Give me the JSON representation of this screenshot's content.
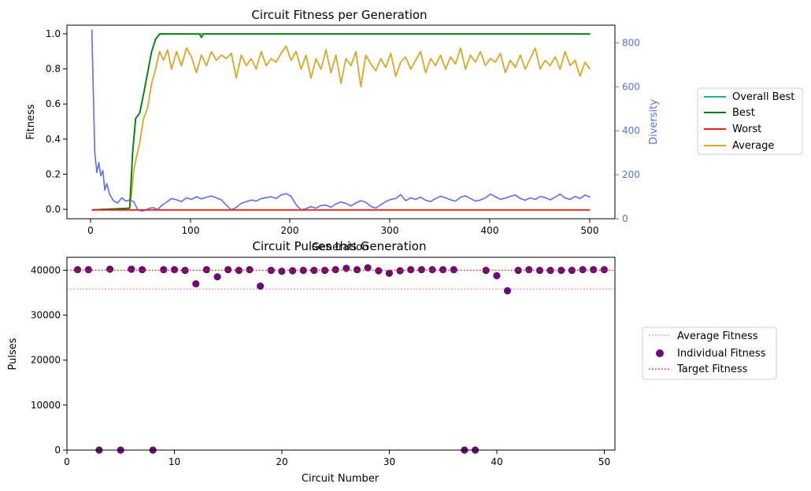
{
  "chart_data": [
    {
      "type": "line",
      "title": "Circuit Fitness per Generation",
      "xlabel": "Generation",
      "ylabel": "Fitness",
      "y2label": "Diversity",
      "xlim": [
        -25,
        525
      ],
      "ylim": [
        -0.05,
        1.05
      ],
      "y2lim": [
        0,
        880
      ],
      "xticks": [
        "0",
        "100",
        "200",
        "300",
        "400",
        "500"
      ],
      "yticks": [
        "0.0",
        "0.2",
        "0.4",
        "0.6",
        "0.8",
        "1.0"
      ],
      "y2ticks": [
        "0",
        "200",
        "400",
        "600",
        "800"
      ],
      "legend_position": "outside-right",
      "colors": {
        "overall_best": "#1db38a",
        "best": "#0a7d0a",
        "worst": "#e8231f",
        "average": "#dba628",
        "diversity": "#5b6fe6"
      },
      "series": [
        {
          "name": "Overall Best",
          "axis": "left",
          "x": [
            0,
            38,
            41,
            44,
            48,
            52,
            56,
            60,
            64,
            68,
            72,
            500
          ],
          "values": [
            0.0,
            0.01,
            0.33,
            0.52,
            0.55,
            0.66,
            0.78,
            0.9,
            0.97,
            1.0,
            1.0,
            1.0
          ]
        },
        {
          "name": "Best",
          "axis": "left",
          "x": [
            0,
            38,
            41,
            44,
            48,
            52,
            56,
            60,
            64,
            68,
            72,
            100,
            108,
            110,
            112,
            200,
            300,
            400,
            500
          ],
          "values": [
            0.0,
            0.01,
            0.33,
            0.52,
            0.55,
            0.66,
            0.78,
            0.9,
            0.97,
            1.0,
            1.0,
            1.0,
            1.0,
            0.98,
            1.0,
            1.0,
            1.0,
            1.0,
            1.0
          ]
        },
        {
          "name": "Worst",
          "axis": "left",
          "x": [
            0,
            500
          ],
          "values": [
            0.0,
            0.0
          ]
        },
        {
          "name": "Average",
          "axis": "left",
          "x": [
            0,
            38,
            40,
            42,
            44,
            48,
            52,
            56,
            60,
            64,
            68,
            72,
            76,
            80,
            85,
            90,
            95,
            100,
            105,
            110,
            115,
            120,
            125,
            130,
            135,
            140,
            145,
            150,
            155,
            160,
            165,
            170,
            175,
            180,
            185,
            190,
            195,
            200,
            205,
            210,
            215,
            220,
            225,
            230,
            235,
            240,
            245,
            250,
            255,
            260,
            265,
            270,
            275,
            280,
            285,
            290,
            295,
            300,
            305,
            310,
            315,
            320,
            325,
            330,
            335,
            340,
            345,
            350,
            355,
            360,
            365,
            370,
            375,
            380,
            385,
            390,
            395,
            400,
            405,
            410,
            415,
            420,
            425,
            430,
            435,
            440,
            445,
            450,
            455,
            460,
            465,
            470,
            475,
            480,
            485,
            490,
            495,
            500
          ],
          "values": [
            0.0,
            0.01,
            0.1,
            0.22,
            0.28,
            0.38,
            0.52,
            0.58,
            0.72,
            0.8,
            0.9,
            0.85,
            0.91,
            0.8,
            0.9,
            0.82,
            0.92,
            0.87,
            0.78,
            0.88,
            0.82,
            0.9,
            0.85,
            0.88,
            0.86,
            0.89,
            0.75,
            0.88,
            0.82,
            0.86,
            0.8,
            0.9,
            0.82,
            0.86,
            0.84,
            0.89,
            0.93,
            0.85,
            0.9,
            0.8,
            0.88,
            0.75,
            0.86,
            0.8,
            0.91,
            0.78,
            0.88,
            0.72,
            0.86,
            0.82,
            0.9,
            0.7,
            0.88,
            0.83,
            0.79,
            0.86,
            0.81,
            0.89,
            0.76,
            0.84,
            0.87,
            0.8,
            0.85,
            0.9,
            0.78,
            0.86,
            0.82,
            0.88,
            0.8,
            0.87,
            0.83,
            0.92,
            0.8,
            0.88,
            0.84,
            0.9,
            0.82,
            0.86,
            0.84,
            0.89,
            0.78,
            0.85,
            0.81,
            0.88,
            0.8,
            0.86,
            0.92,
            0.8,
            0.85,
            0.82,
            0.87,
            0.8,
            0.9,
            0.82,
            0.85,
            0.76,
            0.84,
            0.8
          ]
        },
        {
          "name": "",
          "axis": "right",
          "x": [
            0,
            2,
            3,
            5,
            7,
            9,
            11,
            13,
            15,
            18,
            22,
            26,
            30,
            34,
            38,
            42,
            46,
            50,
            54,
            58,
            62,
            66,
            70,
            75,
            80,
            85,
            90,
            95,
            100,
            105,
            110,
            115,
            120,
            125,
            130,
            135,
            140,
            145,
            150,
            155,
            160,
            165,
            170,
            175,
            180,
            185,
            190,
            195,
            200,
            205,
            210,
            215,
            220,
            225,
            230,
            235,
            240,
            245,
            250,
            255,
            260,
            265,
            270,
            275,
            280,
            285,
            290,
            295,
            300,
            305,
            310,
            315,
            320,
            325,
            330,
            335,
            340,
            345,
            350,
            355,
            360,
            365,
            370,
            375,
            380,
            385,
            390,
            395,
            400,
            405,
            410,
            415,
            420,
            425,
            430,
            435,
            440,
            445,
            450,
            455,
            460,
            465,
            470,
            475,
            480,
            485,
            490,
            495,
            500
          ],
          "values": [
            860,
            480,
            300,
            210,
            255,
            195,
            220,
            130,
            160,
            110,
            80,
            72,
            95,
            80,
            85,
            78,
            42,
            35,
            40,
            48,
            50,
            42,
            60,
            75,
            92,
            86,
            78,
            95,
            88,
            100,
            90,
            98,
            103,
            95,
            86,
            62,
            40,
            52,
            70,
            78,
            85,
            80,
            92,
            96,
            100,
            92,
            108,
            114,
            102,
            64,
            40,
            46,
            55,
            48,
            60,
            62,
            52,
            68,
            76,
            70,
            58,
            72,
            82,
            75,
            56,
            48,
            64,
            78,
            88,
            92,
            110,
            82,
            95,
            88,
            98,
            84,
            78,
            92,
            102,
            95,
            86,
            80,
            98,
            104,
            92,
            80,
            85,
            95,
            112,
            100,
            88,
            94,
            102,
            108,
            92,
            84,
            95,
            88,
            102,
            96,
            86,
            98,
            112,
            94,
            88,
            102,
            92,
            108,
            98
          ]
        }
      ]
    },
    {
      "type": "scatter",
      "title": "Circuit Pulses this Generation",
      "xlabel": "Circuit Number",
      "ylabel": "Pulses",
      "xlim": [
        0,
        51
      ],
      "ylim": [
        0,
        42900
      ],
      "xticks": [
        "0",
        "10",
        "20",
        "30",
        "40",
        "50"
      ],
      "yticks": [
        "0",
        "10000",
        "20000",
        "30000",
        "40000"
      ],
      "legend_position": "outside-right",
      "colors": {
        "average": "#ee82ee",
        "individual": "#660f73",
        "target": "#e8231f"
      },
      "series": [
        {
          "name": "Average Fitness",
          "kind": "hline",
          "values": [
            35800
          ]
        },
        {
          "name": "Individual Fitness",
          "kind": "points",
          "x": [
            1,
            2,
            3,
            4,
            5,
            6,
            7,
            8,
            9,
            10,
            11,
            12,
            13,
            14,
            15,
            16,
            17,
            18,
            19,
            20,
            21,
            22,
            23,
            24,
            25,
            26,
            27,
            28,
            29,
            30,
            31,
            32,
            33,
            34,
            35,
            36,
            37,
            38,
            39,
            40,
            41,
            42,
            43,
            44,
            45,
            46,
            47,
            48,
            49,
            50
          ],
          "values": [
            40150,
            40150,
            0,
            40250,
            0,
            40250,
            40150,
            0,
            40150,
            40150,
            40000,
            37000,
            40150,
            38550,
            40150,
            40000,
            40150,
            36500,
            40000,
            39800,
            39900,
            40000,
            40000,
            40000,
            40150,
            40450,
            40150,
            40550,
            39900,
            39350,
            39900,
            40150,
            40150,
            40150,
            40150,
            40150,
            0,
            0,
            40000,
            38800,
            35450,
            40000,
            40150,
            40000,
            40000,
            40000,
            40000,
            40150,
            40150,
            40150
          ]
        },
        {
          "name": "Target Fitness",
          "kind": "hline",
          "values": [
            40000
          ]
        }
      ]
    }
  ]
}
